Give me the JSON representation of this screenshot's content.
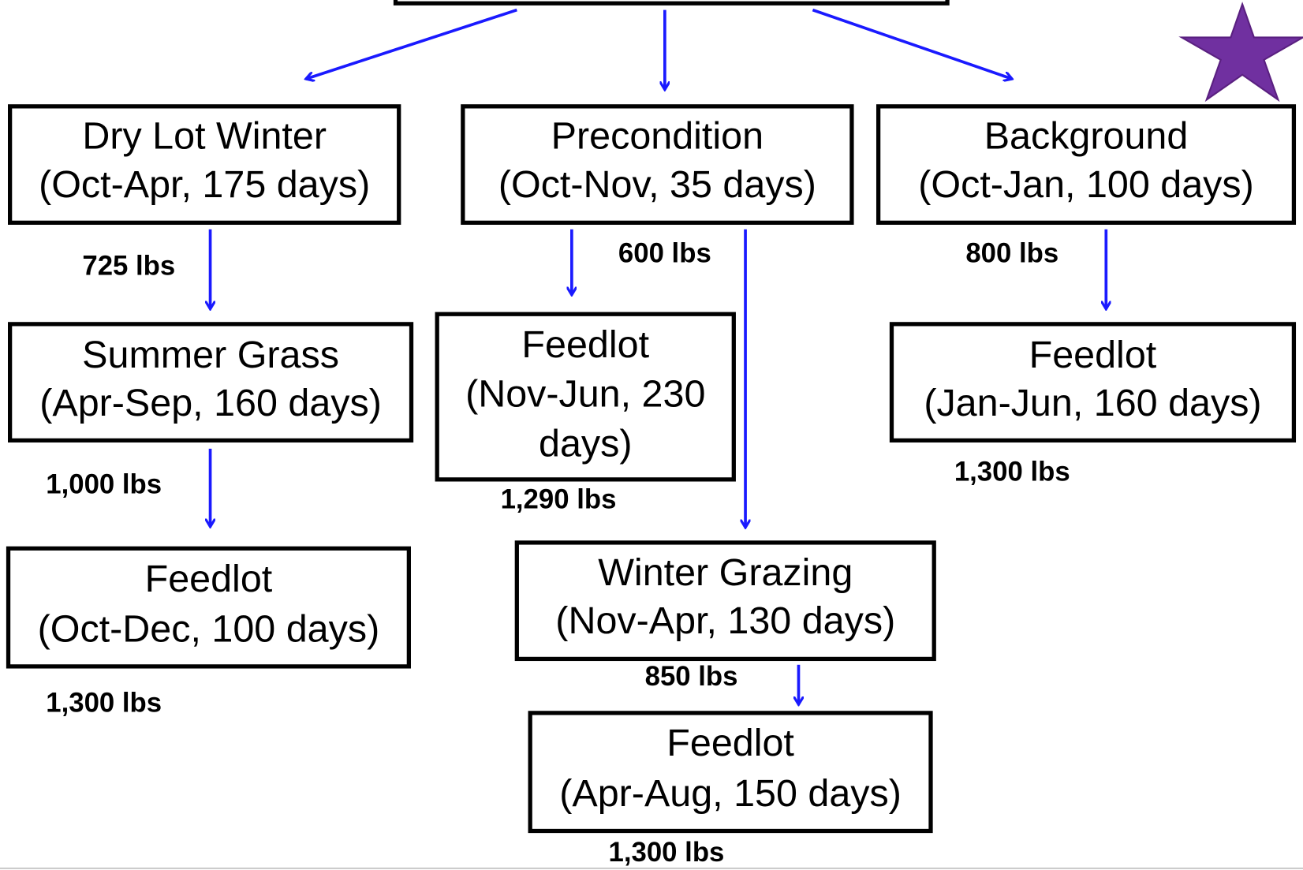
{
  "nodes": [
    {
      "lines": [
        "Dry Lot Winter",
        "(Oct-Apr, 175 days)"
      ]
    },
    {
      "lines": [
        "Precondition",
        "(Oct-Nov, 35 days)"
      ]
    },
    {
      "lines": [
        "Background",
        "(Oct-Jan, 100 days)"
      ]
    },
    {
      "lines": [
        "Summer Grass",
        "(Apr-Sep, 160 days)"
      ]
    },
    {
      "lines": [
        "Feedlot",
        "(Nov-Jun, 230",
        "days)"
      ]
    },
    {
      "lines": [
        "Feedlot",
        "(Jan-Jun, 160 days)"
      ]
    },
    {
      "lines": [
        "Feedlot",
        "(Oct-Dec, 100 days)"
      ]
    },
    {
      "lines": [
        "Winter Grazing",
        "(Nov-Apr, 130 days)"
      ]
    },
    {
      "lines": [
        "Feedlot",
        "(Apr-Aug, 150 days)"
      ]
    }
  ],
  "weights": [
    "725 lbs",
    "1,000 lbs",
    "1,300 lbs",
    "600 lbs",
    "1,290 lbs",
    "800 lbs",
    "1,300 lbs",
    "850 lbs",
    "1,300 lbs"
  ]
}
